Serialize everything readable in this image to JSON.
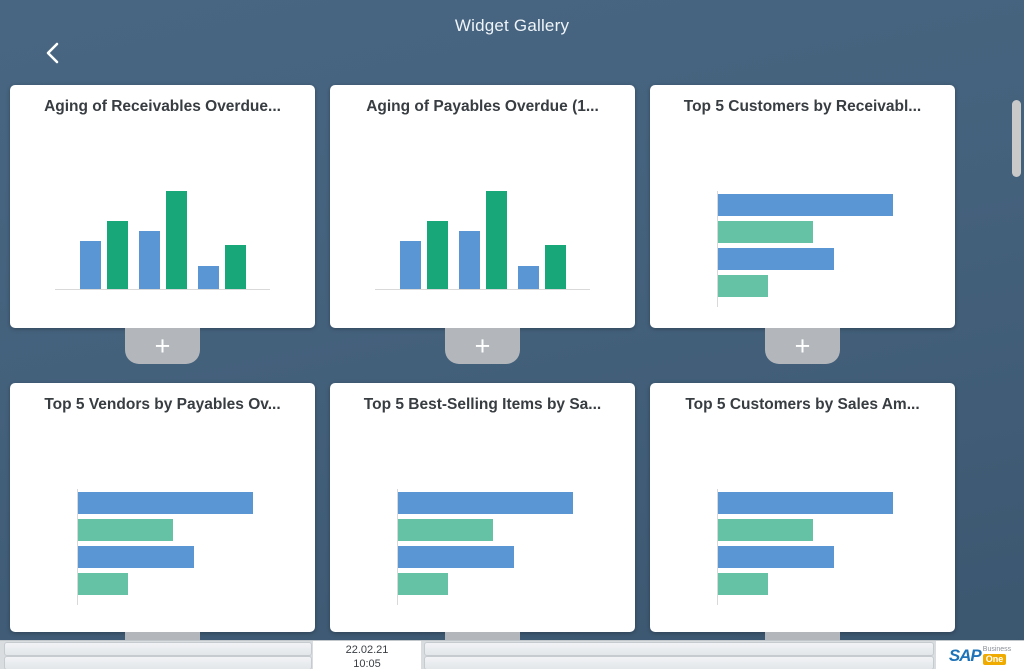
{
  "header": {
    "title": "Widget Gallery"
  },
  "colors": {
    "blue": "#5B96D4",
    "green": "#17A779",
    "mint": "#66C2A5"
  },
  "widgets": [
    {
      "title": "Aging of Receivables Overdue...",
      "chart": {
        "type": "column",
        "values_pct": [
          44,
          63,
          54,
          91,
          21,
          41
        ],
        "colors": [
          "blue",
          "green",
          "blue",
          "green",
          "blue",
          "green"
        ]
      }
    },
    {
      "title": "Aging of Payables Overdue (1...",
      "chart": {
        "type": "column",
        "values_pct": [
          44,
          63,
          54,
          91,
          21,
          41
        ],
        "colors": [
          "blue",
          "green",
          "blue",
          "green",
          "blue",
          "green"
        ]
      }
    },
    {
      "title": "Top 5 Customers by Receivabl...",
      "chart": {
        "type": "bar",
        "values_pct": [
          77,
          42,
          51,
          22
        ],
        "colors": [
          "blue",
          "mint",
          "blue",
          "mint"
        ]
      }
    },
    {
      "title": "Top 5 Vendors by Payables Ov...",
      "chart": {
        "type": "bar",
        "values_pct": [
          77,
          42,
          51,
          22
        ],
        "colors": [
          "blue",
          "mint",
          "blue",
          "mint"
        ]
      }
    },
    {
      "title": "Top 5 Best-Selling Items by Sa...",
      "chart": {
        "type": "bar",
        "values_pct": [
          77,
          42,
          51,
          22
        ],
        "colors": [
          "blue",
          "mint",
          "blue",
          "mint"
        ]
      }
    },
    {
      "title": "Top 5 Customers by Sales Am...",
      "chart": {
        "type": "bar",
        "values_pct": [
          77,
          42,
          51,
          22
        ],
        "colors": [
          "blue",
          "mint",
          "blue",
          "mint"
        ]
      }
    }
  ],
  "plus_button_label": "+",
  "taskbar": {
    "date": "22.02.21",
    "time": "10:05"
  },
  "branding": {
    "sap": "SAP",
    "business": "Business",
    "one": "One"
  }
}
